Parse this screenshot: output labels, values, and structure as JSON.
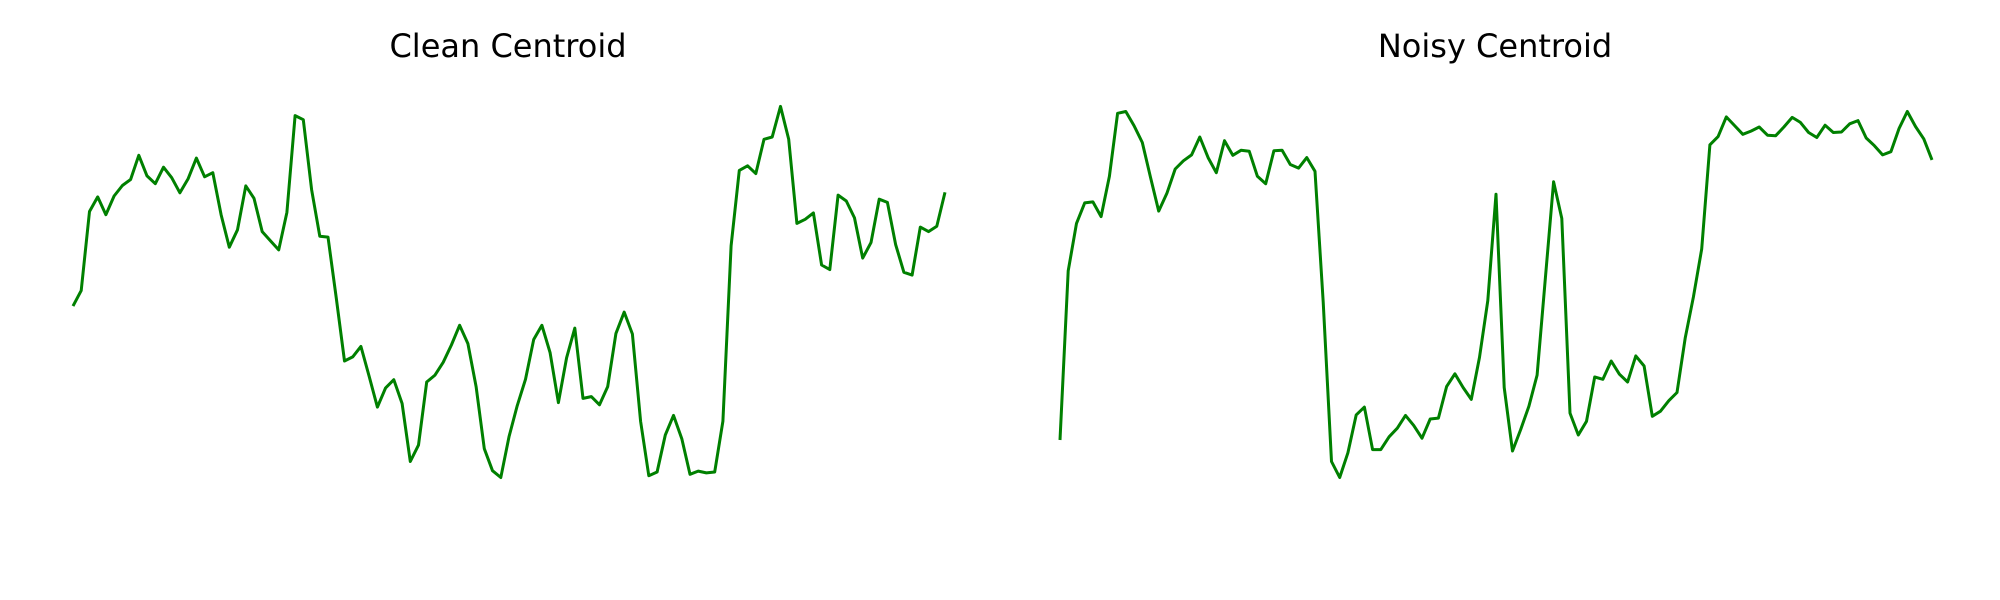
{
  "chart_data": [
    {
      "type": "line",
      "title": "Clean Centroid",
      "xlabel": "",
      "ylabel": "",
      "axes_visible": false,
      "grid": false,
      "color": "#008000",
      "ylim": [
        0,
        1
      ],
      "series": [
        {
          "values": [
            0.538,
            0.572,
            0.745,
            0.777,
            0.738,
            0.779,
            0.802,
            0.815,
            0.868,
            0.823,
            0.806,
            0.842,
            0.819,
            0.786,
            0.817,
            0.862,
            0.821,
            0.83,
            0.738,
            0.667,
            0.705,
            0.801,
            0.774,
            0.701,
            0.681,
            0.661,
            0.743,
            0.955,
            0.946,
            0.793,
            0.691,
            0.689,
            0.557,
            0.418,
            0.427,
            0.45,
            0.384,
            0.317,
            0.359,
            0.377,
            0.325,
            0.198,
            0.234,
            0.372,
            0.387,
            0.415,
            0.453,
            0.496,
            0.456,
            0.362,
            0.226,
            0.178,
            0.163,
            0.252,
            0.32,
            0.378,
            0.465,
            0.496,
            0.436,
            0.327,
            0.425,
            0.49,
            0.336,
            0.34,
            0.322,
            0.362,
            0.478,
            0.525,
            0.477,
            0.286,
            0.167,
            0.175,
            0.256,
            0.299,
            0.248,
            0.17,
            0.177,
            0.173,
            0.175,
            0.286,
            0.67,
            0.835,
            0.845,
            0.828,
            0.903,
            0.908,
            0.975,
            0.903,
            0.719,
            0.728,
            0.742,
            0.628,
            0.618,
            0.781,
            0.768,
            0.731,
            0.643,
            0.677,
            0.772,
            0.765,
            0.673,
            0.612,
            0.606,
            0.711,
            0.701,
            0.713,
            0.787
          ]
        }
      ]
    },
    {
      "type": "line",
      "title": "Noisy Centroid",
      "xlabel": "",
      "ylabel": "",
      "axes_visible": false,
      "grid": false,
      "color": "#008000",
      "ylim": [
        0,
        1
      ],
      "series": [
        {
          "values": [
            0.245,
            0.615,
            0.719,
            0.764,
            0.766,
            0.734,
            0.822,
            0.96,
            0.964,
            0.933,
            0.896,
            0.82,
            0.746,
            0.785,
            0.838,
            0.856,
            0.869,
            0.908,
            0.863,
            0.83,
            0.9,
            0.868,
            0.879,
            0.877,
            0.822,
            0.806,
            0.878,
            0.879,
            0.848,
            0.84,
            0.863,
            0.833,
            0.547,
            0.198,
            0.163,
            0.217,
            0.3,
            0.317,
            0.224,
            0.224,
            0.252,
            0.271,
            0.299,
            0.277,
            0.249,
            0.291,
            0.293,
            0.362,
            0.39,
            0.36,
            0.334,
            0.426,
            0.55,
            0.783,
            0.36,
            0.221,
            0.268,
            0.319,
            0.387,
            0.6,
            0.81,
            0.73,
            0.304,
            0.256,
            0.286,
            0.383,
            0.378,
            0.418,
            0.389,
            0.372,
            0.429,
            0.407,
            0.297,
            0.308,
            0.331,
            0.349,
            0.468,
            0.558,
            0.663,
            0.891,
            0.909,
            0.952,
            0.933,
            0.914,
            0.921,
            0.93,
            0.912,
            0.911,
            0.93,
            0.951,
            0.94,
            0.918,
            0.907,
            0.934,
            0.918,
            0.919,
            0.937,
            0.944,
            0.906,
            0.889,
            0.869,
            0.876,
            0.927,
            0.964,
            0.931,
            0.904,
            0.858
          ]
        }
      ]
    }
  ]
}
